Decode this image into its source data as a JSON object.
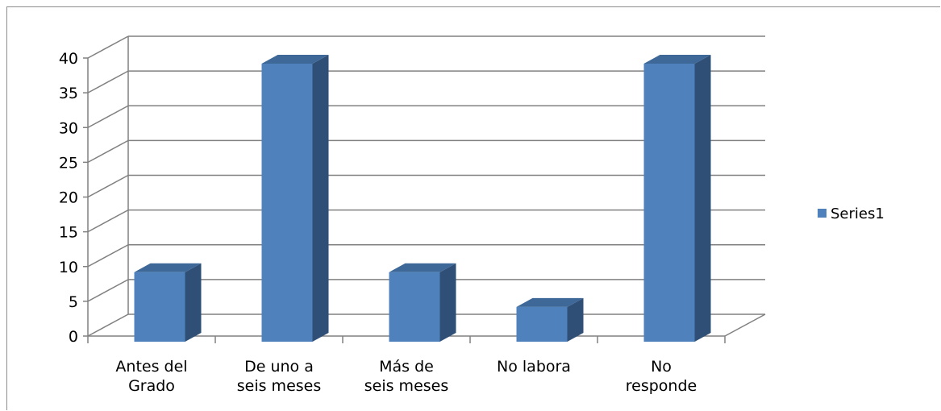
{
  "chart_data": {
    "type": "bar",
    "title": "",
    "xlabel": "",
    "ylabel": "",
    "ylim": [
      0,
      40
    ],
    "yticks": [
      0,
      5,
      10,
      15,
      20,
      25,
      30,
      35,
      40
    ],
    "categories": [
      [
        "Antes del",
        "Grado"
      ],
      [
        "De uno a",
        "seis meses"
      ],
      [
        "Más de",
        "seis meses"
      ],
      [
        "No labora"
      ],
      [
        "No",
        "responde"
      ]
    ],
    "series": [
      {
        "name": "Series1",
        "values": [
          10,
          40,
          10,
          5,
          40
        ]
      }
    ],
    "grid": true,
    "legend_position": "right",
    "style": "3d-column",
    "colors": {
      "bar_front": "#4f81bd",
      "bar_side": "#2f4f76",
      "bar_top": "#3d6898",
      "gridline": "#808080"
    }
  }
}
